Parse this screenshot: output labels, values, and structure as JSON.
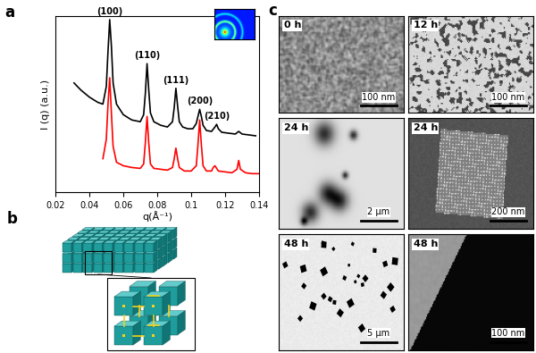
{
  "panel_labels": [
    "a",
    "b",
    "c"
  ],
  "chart_data": {
    "type": "line",
    "x_label": "q(Å⁻¹)",
    "y_label": "I (q) (a.u.)",
    "series": [
      {
        "color": "#000000",
        "x": [
          0.031,
          0.035,
          0.04,
          0.045,
          0.048,
          0.05,
          0.051,
          0.052,
          0.053,
          0.054,
          0.056,
          0.06,
          0.065,
          0.07,
          0.072,
          0.073,
          0.074,
          0.075,
          0.076,
          0.078,
          0.082,
          0.086,
          0.089,
          0.09,
          0.091,
          0.092,
          0.093,
          0.095,
          0.098,
          0.101,
          0.103,
          0.104,
          0.105,
          0.106,
          0.107,
          0.109,
          0.112,
          0.114,
          0.115,
          0.116,
          0.118,
          0.122,
          0.126,
          0.128,
          0.13,
          0.134,
          0.138
        ],
        "values": [
          6.2,
          5.8,
          5.4,
          5.1,
          5.0,
          6.0,
          8.0,
          9.8,
          8.3,
          6.2,
          5.0,
          4.4,
          4.1,
          4.0,
          4.4,
          5.6,
          7.3,
          5.8,
          4.5,
          4.0,
          3.8,
          3.7,
          4.0,
          4.8,
          5.9,
          4.9,
          4.0,
          3.7,
          3.6,
          3.6,
          3.9,
          4.3,
          4.7,
          4.3,
          3.8,
          3.5,
          3.45,
          3.7,
          3.85,
          3.6,
          3.4,
          3.35,
          3.3,
          3.45,
          3.3,
          3.25,
          3.2
        ]
      },
      {
        "color": "#ff0000",
        "x": [
          0.048,
          0.05,
          0.051,
          0.052,
          0.053,
          0.054,
          0.056,
          0.06,
          0.065,
          0.07,
          0.072,
          0.073,
          0.074,
          0.075,
          0.076,
          0.078,
          0.082,
          0.086,
          0.089,
          0.09,
          0.091,
          0.092,
          0.093,
          0.096,
          0.1,
          0.103,
          0.104,
          0.105,
          0.106,
          0.107,
          0.109,
          0.112,
          0.113,
          0.114,
          0.116,
          0.12,
          0.124,
          0.127,
          0.128,
          0.129,
          0.132,
          0.136,
          0.14
        ],
        "values": [
          1.9,
          3.0,
          5.0,
          6.5,
          4.5,
          2.6,
          1.7,
          1.5,
          1.4,
          1.35,
          1.6,
          2.8,
          4.3,
          2.8,
          1.6,
          1.35,
          1.3,
          1.25,
          1.4,
          1.9,
          2.5,
          1.9,
          1.4,
          1.2,
          1.2,
          1.5,
          2.7,
          4.1,
          2.7,
          1.5,
          1.2,
          1.2,
          1.4,
          1.5,
          1.2,
          1.15,
          1.1,
          1.3,
          1.8,
          1.3,
          1.1,
          1.05,
          1.05
        ]
      }
    ],
    "annotations": [
      {
        "text": "(100)",
        "x": 0.052
      },
      {
        "text": "(110)",
        "x": 0.074
      },
      {
        "text": "(111)",
        "x": 0.091
      },
      {
        "text": "(200)",
        "x": 0.105
      },
      {
        "text": "(210)",
        "x": 0.115
      }
    ],
    "xlim": [
      0.02,
      0.14
    ],
    "xticks": [
      0.02,
      0.04,
      0.06,
      0.08,
      0.1,
      0.12,
      0.14
    ],
    "ylim": [
      0,
      10
    ],
    "yticks": [],
    "tick_labels": "x"
  },
  "micrographs": [
    {
      "time": "0 h",
      "scale_bar": "100 nm"
    },
    {
      "time": "12 h",
      "scale_bar": "100 nm"
    },
    {
      "time": "24 h",
      "scale_bar": "2 μm"
    },
    {
      "time": "24 h",
      "scale_bar": "200 nm"
    },
    {
      "time": "48 h",
      "scale_bar": "5 μm"
    },
    {
      "time": "48 h",
      "scale_bar": "100 nm"
    }
  ]
}
